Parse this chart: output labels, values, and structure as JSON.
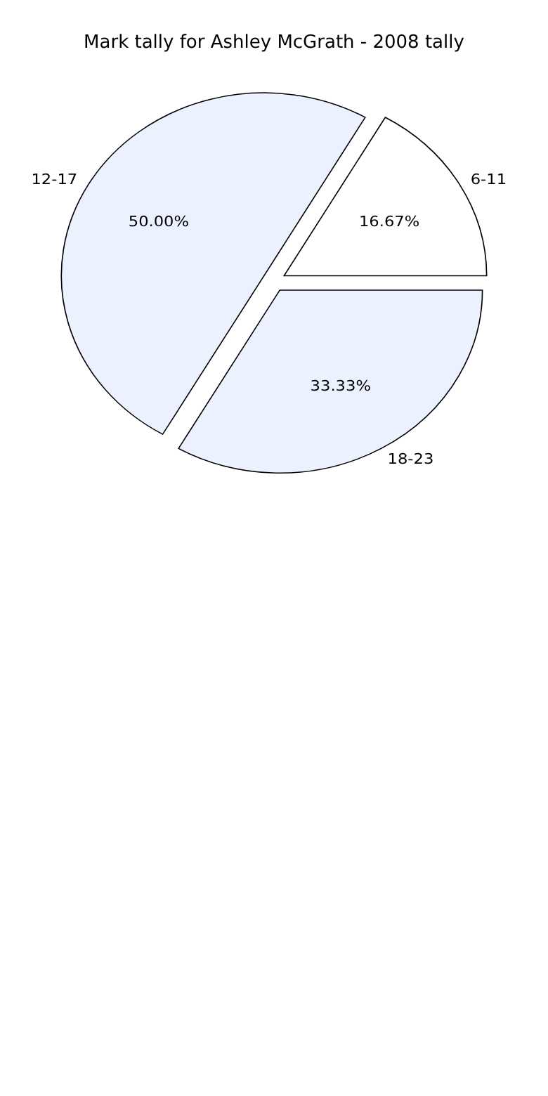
{
  "chart_data": {
    "type": "pie",
    "title": "Mark tally for Ashley McGrath - 2008 tally",
    "categories": [
      "6-11",
      "12-17",
      "18-23"
    ],
    "values": [
      16.67,
      50.0,
      33.33
    ],
    "value_labels": [
      "16.67%",
      "50.00%",
      "33.33%"
    ],
    "colors": [
      "#ffffff",
      "#ebf1fe",
      "#ebf1fe"
    ],
    "legend": false
  }
}
